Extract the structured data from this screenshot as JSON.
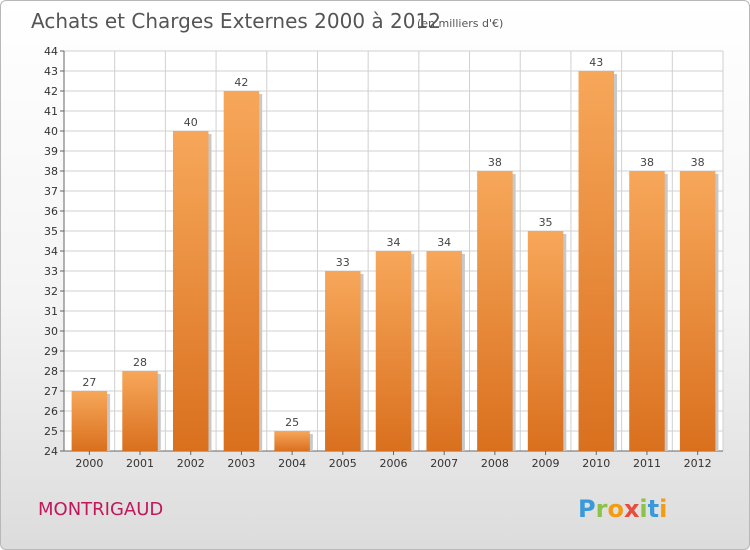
{
  "chart_data": {
    "type": "bar",
    "title": "Achats et Charges Externes 2000 à 2012",
    "subtitle": "(en milliers d'€)",
    "categories": [
      "2000",
      "2001",
      "2002",
      "2003",
      "2004",
      "2005",
      "2006",
      "2007",
      "2008",
      "2009",
      "2010",
      "2011",
      "2012"
    ],
    "values": [
      27,
      28,
      40,
      42,
      25,
      33,
      34,
      34,
      38,
      35,
      43,
      38,
      38
    ],
    "ylim": [
      24,
      44
    ],
    "yticks": [
      24,
      25,
      26,
      27,
      28,
      29,
      30,
      31,
      32,
      33,
      34,
      35,
      36,
      37,
      38,
      39,
      40,
      41,
      42,
      43,
      44
    ],
    "grid": true,
    "bar_color_top": "#f7a75a",
    "bar_color_bottom": "#d9701e"
  },
  "location_label": "MONTRIGAUD",
  "brand": {
    "letters": [
      "P",
      "r",
      "o",
      "x",
      "i",
      "t",
      "i"
    ],
    "colors": [
      "#3a9ad9",
      "#8bc34a",
      "#f39c12",
      "#e74c3c",
      "#8bc34a",
      "#3a9ad9",
      "#f39c12"
    ]
  }
}
